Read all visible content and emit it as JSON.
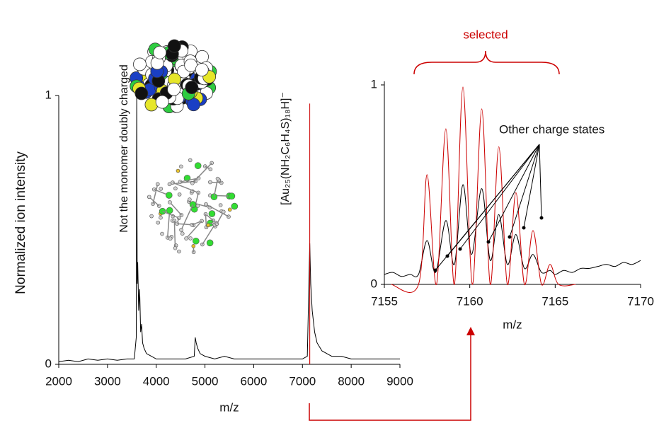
{
  "chart_data": [
    {
      "type": "line",
      "xlabel": "m/z",
      "ylabel": "Normalized ion intensity",
      "xlim": [
        2000,
        9000
      ],
      "xticks": [
        2000,
        3000,
        4000,
        5000,
        6000,
        7000,
        8000,
        9000
      ],
      "ylim": [
        0,
        1
      ],
      "yticks": [
        0,
        1
      ],
      "annotations": [
        "Not the monomer doubly charged",
        "[Au₂₅(NH₂C₆H₄S)₁₈H]⁻"
      ],
      "series": [
        {
          "color": "#000000",
          "x": [
            2000,
            2200,
            2400,
            2600,
            2800,
            3000,
            3200,
            3400,
            3550,
            3590,
            3600,
            3610,
            3620,
            3640,
            3660,
            3680,
            3700,
            3720,
            3750,
            3800,
            3900,
            4000,
            4200,
            4400,
            4600,
            4780,
            4800,
            4820,
            4850,
            4900,
            5000,
            5200,
            5400,
            5600,
            5800,
            6000,
            6200,
            6400,
            6600,
            6800,
            7000,
            7100,
            7150,
            7170,
            7200,
            7250,
            7300,
            7400,
            7500,
            7600,
            7800,
            8000,
            8200,
            8400,
            8600,
            8800,
            9000
          ],
          "values": [
            0.01,
            0.015,
            0.01,
            0.02,
            0.015,
            0.02,
            0.015,
            0.02,
            0.02,
            0.1,
            1.0,
            0.3,
            0.38,
            0.2,
            0.28,
            0.12,
            0.15,
            0.08,
            0.06,
            0.04,
            0.03,
            0.02,
            0.02,
            0.02,
            0.02,
            0.03,
            0.1,
            0.08,
            0.06,
            0.04,
            0.03,
            0.02,
            0.03,
            0.02,
            0.02,
            0.02,
            0.02,
            0.02,
            0.02,
            0.02,
            0.02,
            0.03,
            0.45,
            0.3,
            0.2,
            0.12,
            0.08,
            0.05,
            0.04,
            0.03,
            0.03,
            0.02,
            0.02,
            0.02,
            0.02,
            0.02,
            0.02
          ]
        },
        {
          "color": "#cc0000",
          "x": [
            7149,
            7150,
            7151
          ],
          "values": [
            0,
            0.97,
            0
          ]
        }
      ]
    },
    {
      "type": "line",
      "xlabel": "m/z",
      "xlim": [
        7155,
        7170
      ],
      "xticks": [
        7155,
        7160,
        7165,
        7170
      ],
      "ylim": [
        0,
        1
      ],
      "yticks": [
        0,
        1
      ],
      "annotations": [
        "selected",
        "Other charge states"
      ],
      "series": [
        {
          "color": "#000000",
          "x": [
            7155,
            7155.5,
            7156,
            7156.5,
            7157,
            7157.5,
            7158,
            7158.6,
            7159.1,
            7159.6,
            7160.1,
            7160.7,
            7161.2,
            7161.7,
            7162.2,
            7162.7,
            7163.2,
            7163.7,
            7164.2,
            7164.7,
            7165,
            7165.5,
            7166,
            7166.5,
            7167,
            7167.5,
            7168,
            7168.5,
            7169,
            7169.5,
            7170
          ],
          "values": [
            0.05,
            0.06,
            0.04,
            0.05,
            0.05,
            0.22,
            0.06,
            0.32,
            0.1,
            0.5,
            0.15,
            0.48,
            0.12,
            0.35,
            0.1,
            0.25,
            0.08,
            0.15,
            0.06,
            0.07,
            0.05,
            0.07,
            0.06,
            0.08,
            0.08,
            0.09,
            0.1,
            0.09,
            0.11,
            0.1,
            0.12
          ]
        },
        {
          "color": "#cc0000",
          "x": [
            7155.4,
            7157.0,
            7157.5,
            7158.05,
            7158.6,
            7159.1,
            7159.6,
            7160.15,
            7160.7,
            7161.2,
            7161.7,
            7162.2,
            7162.7,
            7163.2,
            7163.7,
            7164.2,
            7164.7,
            7165.2,
            7166.2
          ],
          "values": [
            0,
            0,
            0.55,
            0,
            0.78,
            0,
            0.99,
            0,
            0.88,
            0,
            0.69,
            0,
            0.46,
            0,
            0.27,
            0,
            0.1,
            0,
            0
          ]
        }
      ]
    }
  ]
}
